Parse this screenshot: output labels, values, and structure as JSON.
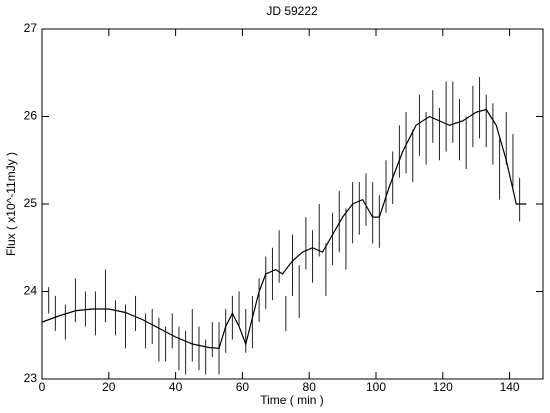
{
  "chart_data": {
    "type": "scatter",
    "title": "JD 59222",
    "x_label": "Time ( min )",
    "y_label": "Flux ( x10^-11mJy )",
    "xlim": [
      0,
      150
    ],
    "ylim": [
      23,
      27
    ],
    "xticks": [
      0,
      20,
      40,
      60,
      80,
      100,
      120,
      140
    ],
    "yticks": [
      23,
      24,
      25,
      26,
      27
    ],
    "series": [
      {
        "kind": "errorbar",
        "color": "#222222",
        "x": [
          2,
          4,
          7,
          10,
          13,
          16,
          19,
          22,
          25,
          28,
          31,
          33,
          35,
          37,
          39,
          41,
          43,
          45,
          47,
          49,
          51,
          53,
          55,
          57,
          59,
          61,
          63,
          65,
          67,
          69,
          71,
          73,
          75,
          77,
          79,
          81,
          83,
          85,
          87,
          89,
          91,
          93,
          95,
          97,
          99,
          101,
          103,
          105,
          107,
          109,
          111,
          113,
          115,
          117,
          119,
          121,
          123,
          125,
          127,
          129,
          131,
          133,
          135,
          137,
          139,
          141,
          143
        ],
        "values": [
          23.9,
          23.75,
          23.65,
          23.9,
          23.8,
          23.75,
          23.95,
          23.7,
          23.6,
          23.75,
          23.55,
          23.6,
          23.45,
          23.4,
          23.55,
          23.35,
          23.3,
          23.5,
          23.35,
          23.25,
          23.45,
          23.35,
          23.55,
          23.7,
          23.8,
          23.55,
          23.65,
          23.9,
          24.1,
          24.2,
          24.4,
          23.75,
          24.3,
          24.0,
          24.55,
          24.4,
          24.7,
          24.25,
          24.6,
          24.8,
          24.6,
          24.9,
          24.95,
          25.05,
          24.9,
          24.8,
          25.2,
          25.3,
          25.6,
          25.7,
          25.55,
          25.9,
          25.75,
          26.0,
          25.8,
          26.0,
          26.05,
          25.85,
          25.7,
          26.0,
          26.1,
          25.95,
          25.8,
          25.4,
          25.75,
          25.5,
          25.05
        ],
        "errors": [
          0.15,
          0.2,
          0.2,
          0.25,
          0.2,
          0.25,
          0.3,
          0.2,
          0.25,
          0.2,
          0.2,
          0.2,
          0.25,
          0.2,
          0.2,
          0.25,
          0.25,
          0.3,
          0.25,
          0.2,
          0.2,
          0.3,
          0.25,
          0.25,
          0.2,
          0.25,
          0.3,
          0.25,
          0.3,
          0.3,
          0.3,
          0.2,
          0.35,
          0.3,
          0.3,
          0.3,
          0.3,
          0.3,
          0.3,
          0.35,
          0.35,
          0.35,
          0.3,
          0.3,
          0.35,
          0.3,
          0.3,
          0.3,
          0.3,
          0.35,
          0.3,
          0.35,
          0.3,
          0.3,
          0.3,
          0.4,
          0.35,
          0.35,
          0.3,
          0.35,
          0.35,
          0.3,
          0.35,
          0.35,
          0.3,
          0.3,
          0.25
        ]
      },
      {
        "kind": "line",
        "color": "#000000",
        "x": [
          0,
          5,
          10,
          15,
          20,
          25,
          30,
          35,
          40,
          45,
          50,
          53,
          55,
          57,
          59,
          61,
          63,
          65,
          67,
          70,
          72,
          75,
          78,
          81,
          84,
          87,
          90,
          93,
          96,
          99,
          101,
          104,
          108,
          112,
          116,
          119,
          122,
          126,
          130,
          133,
          136,
          139,
          142,
          145
        ],
        "values": [
          23.65,
          23.72,
          23.78,
          23.8,
          23.8,
          23.76,
          23.68,
          23.58,
          23.48,
          23.4,
          23.36,
          23.35,
          23.6,
          23.75,
          23.6,
          23.4,
          23.7,
          24.0,
          24.2,
          24.25,
          24.2,
          24.35,
          24.45,
          24.5,
          24.45,
          24.65,
          24.85,
          25.0,
          25.05,
          24.85,
          24.85,
          25.2,
          25.6,
          25.9,
          26.0,
          25.95,
          25.9,
          25.95,
          26.05,
          26.08,
          25.9,
          25.5,
          25.0,
          25.0
        ]
      }
    ]
  }
}
